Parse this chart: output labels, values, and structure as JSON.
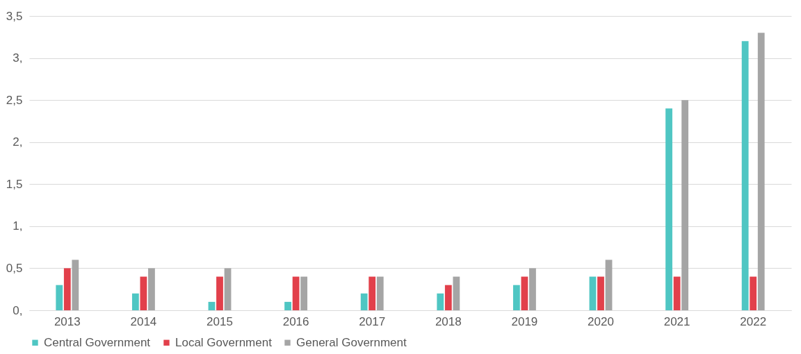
{
  "chart_data": {
    "type": "bar",
    "categories": [
      "2013",
      "2014",
      "2015",
      "2016",
      "2017",
      "2018",
      "2019",
      "2020",
      "2021",
      "2022"
    ],
    "series": [
      {
        "name": "Central Government",
        "color": "#4fc6c3",
        "values": [
          0.3,
          0.2,
          0.1,
          0.1,
          0.2,
          0.2,
          0.3,
          0.4,
          2.4,
          3.2
        ]
      },
      {
        "name": "Local Government",
        "color": "#e2404b",
        "values": [
          0.5,
          0.4,
          0.4,
          0.4,
          0.4,
          0.3,
          0.4,
          0.4,
          0.4,
          0.4
        ]
      },
      {
        "name": "General Government",
        "color": "#a5a5a5",
        "values": [
          0.6,
          0.5,
          0.5,
          0.4,
          0.4,
          0.4,
          0.5,
          0.6,
          2.5,
          3.3
        ]
      }
    ],
    "ylim": [
      0,
      3.5
    ],
    "yticks": [
      {
        "value": 0,
        "label": "0,"
      },
      {
        "value": 0.5,
        "label": "0,5"
      },
      {
        "value": 1,
        "label": "1,"
      },
      {
        "value": 1.5,
        "label": "1,5"
      },
      {
        "value": 2,
        "label": "2,"
      },
      {
        "value": 2.5,
        "label": "2,5"
      },
      {
        "value": 3,
        "label": "3,"
      },
      {
        "value": 3.5,
        "label": "3,5"
      }
    ],
    "grid": "y",
    "legend": "bottom"
  }
}
